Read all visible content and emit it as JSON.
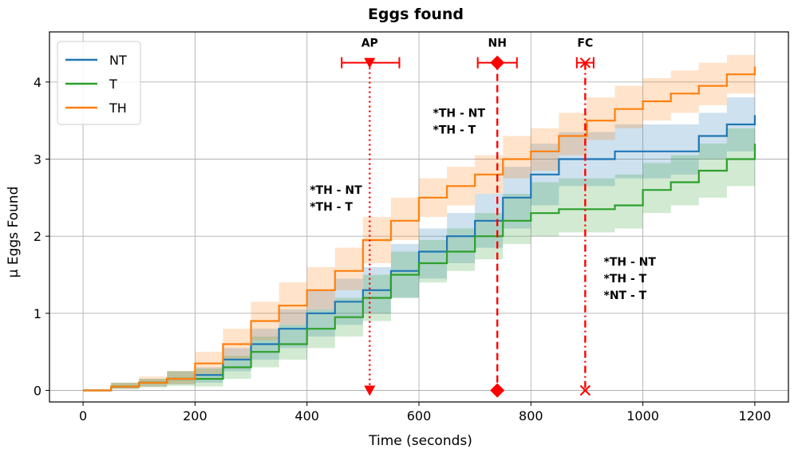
{
  "chart_data": {
    "type": "line",
    "title": "Eggs found",
    "xlabel": "Time (seconds)",
    "ylabel": "μ Eggs Found",
    "xlim": [
      -60,
      1260
    ],
    "ylim": [
      -0.15,
      4.65
    ],
    "xticks": [
      0,
      200,
      400,
      600,
      800,
      1000,
      1200
    ],
    "yticks": [
      0,
      1,
      2,
      3,
      4
    ],
    "grid": true,
    "legend_position": "top-left",
    "colors": {
      "NT": "#1f77b4",
      "T": "#2ca02c",
      "TH": "#ff7f0e",
      "marker": "#ff0000"
    },
    "series": [
      {
        "name": "NT",
        "color": "#1f77b4",
        "x": [
          0,
          50,
          100,
          150,
          200,
          250,
          300,
          350,
          400,
          450,
          500,
          550,
          600,
          650,
          700,
          750,
          800,
          850,
          900,
          950,
          1000,
          1050,
          1100,
          1150,
          1200
        ],
        "y": [
          0,
          0.05,
          0.1,
          0.15,
          0.2,
          0.4,
          0.6,
          0.8,
          1.0,
          1.15,
          1.3,
          1.55,
          1.8,
          2.0,
          2.2,
          2.5,
          2.8,
          3.0,
          3.0,
          3.1,
          3.1,
          3.1,
          3.3,
          3.45,
          3.57
        ],
        "lower": [
          0,
          0.02,
          0.05,
          0.08,
          0.1,
          0.25,
          0.4,
          0.55,
          0.7,
          0.85,
          1.0,
          1.2,
          1.45,
          1.65,
          1.85,
          2.1,
          2.4,
          2.65,
          2.65,
          2.75,
          2.75,
          2.8,
          3.0,
          3.1,
          3.2
        ],
        "upper": [
          0,
          0.1,
          0.15,
          0.25,
          0.3,
          0.55,
          0.8,
          1.05,
          1.3,
          1.45,
          1.6,
          1.9,
          2.1,
          2.3,
          2.55,
          2.9,
          3.2,
          3.35,
          3.35,
          3.45,
          3.45,
          3.45,
          3.6,
          3.8,
          3.95
        ]
      },
      {
        "name": "T",
        "color": "#2ca02c",
        "x": [
          0,
          50,
          100,
          150,
          200,
          250,
          300,
          350,
          400,
          450,
          500,
          550,
          600,
          650,
          700,
          750,
          800,
          850,
          900,
          950,
          1000,
          1050,
          1100,
          1150,
          1200
        ],
        "y": [
          0,
          0.05,
          0.1,
          0.15,
          0.15,
          0.3,
          0.5,
          0.6,
          0.8,
          0.95,
          1.2,
          1.5,
          1.65,
          1.8,
          2.0,
          2.2,
          2.3,
          2.35,
          2.35,
          2.4,
          2.6,
          2.7,
          2.85,
          3.0,
          3.2
        ],
        "lower": [
          0,
          0.02,
          0.04,
          0.06,
          0.05,
          0.15,
          0.3,
          0.4,
          0.55,
          0.7,
          0.9,
          1.2,
          1.4,
          1.55,
          1.7,
          1.9,
          2.0,
          2.05,
          2.05,
          2.1,
          2.3,
          2.4,
          2.5,
          2.65,
          2.85
        ],
        "upper": [
          0,
          0.1,
          0.15,
          0.25,
          0.28,
          0.45,
          0.7,
          0.85,
          1.05,
          1.2,
          1.5,
          1.8,
          1.95,
          2.1,
          2.3,
          2.55,
          2.7,
          2.75,
          2.75,
          2.8,
          2.95,
          3.05,
          3.2,
          3.4,
          3.6
        ]
      },
      {
        "name": "TH",
        "color": "#ff7f0e",
        "x": [
          0,
          50,
          100,
          150,
          200,
          250,
          300,
          350,
          400,
          450,
          500,
          550,
          600,
          650,
          700,
          750,
          800,
          850,
          900,
          950,
          1000,
          1050,
          1100,
          1150,
          1200
        ],
        "y": [
          0,
          0.05,
          0.1,
          0.15,
          0.35,
          0.6,
          0.9,
          1.1,
          1.3,
          1.55,
          1.95,
          2.2,
          2.5,
          2.65,
          2.8,
          3.0,
          3.1,
          3.3,
          3.5,
          3.65,
          3.75,
          3.85,
          3.95,
          4.1,
          4.2
        ],
        "lower": [
          0,
          0.02,
          0.05,
          0.08,
          0.2,
          0.4,
          0.65,
          0.85,
          1.05,
          1.3,
          1.65,
          1.95,
          2.25,
          2.4,
          2.55,
          2.75,
          2.85,
          3.05,
          3.25,
          3.4,
          3.5,
          3.6,
          3.7,
          3.85,
          3.95
        ],
        "upper": [
          0,
          0.1,
          0.18,
          0.25,
          0.5,
          0.8,
          1.15,
          1.4,
          1.6,
          1.85,
          2.25,
          2.5,
          2.75,
          2.9,
          3.05,
          3.3,
          3.4,
          3.6,
          3.8,
          3.95,
          4.05,
          4.15,
          4.25,
          4.35,
          4.45
        ]
      }
    ],
    "markers": [
      {
        "label": "AP",
        "x": 512,
        "xerr": [
          462,
          565
        ],
        "style": "dotted",
        "symbol": "triangle-down"
      },
      {
        "label": "NH",
        "x": 740,
        "xerr": [
          705,
          775
        ],
        "style": "dashed",
        "symbol": "diamond"
      },
      {
        "label": "FC",
        "x": 897,
        "xerr": [
          882,
          912
        ],
        "style": "dashdot",
        "symbol": "x"
      }
    ],
    "marker_y": 4.25,
    "annotations": [
      {
        "x": 405,
        "y": 2.55,
        "lines": [
          "*TH - NT",
          "*TH - T"
        ]
      },
      {
        "x": 625,
        "y": 3.55,
        "lines": [
          "*TH - NT",
          "*TH - T"
        ]
      },
      {
        "x": 930,
        "y": 1.62,
        "lines": [
          "*TH - NT",
          "*TH - T",
          "*NT - T"
        ]
      }
    ]
  }
}
